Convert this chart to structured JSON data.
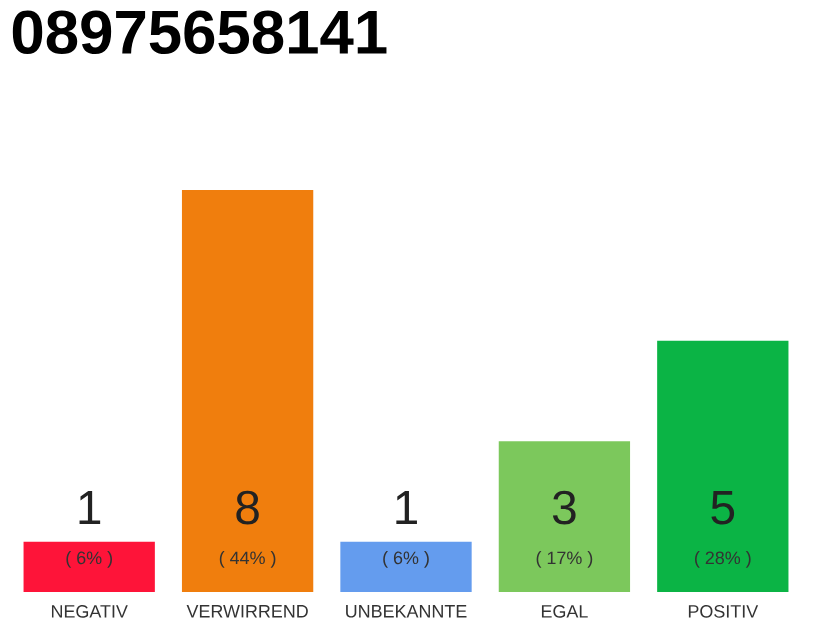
{
  "chart_data": {
    "type": "bar",
    "title": "08975658141",
    "categories": [
      "NEGATIV",
      "VERWIRREND",
      "UNBEKANNTE",
      "EGAL",
      "POSITIV"
    ],
    "values": [
      1,
      8,
      1,
      3,
      5
    ],
    "colors": [
      "#fe1439",
      "#f07e0d",
      "#649cee",
      "#7cc85c",
      "#0bb445"
    ],
    "data_labels": true,
    "annotations": [
      "( 6% )",
      "( 44% )",
      "( 6% )",
      "( 17% )",
      "( 28% )"
    ]
  }
}
